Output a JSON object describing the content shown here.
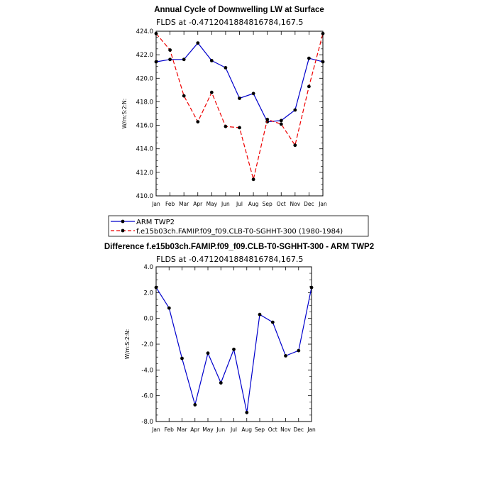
{
  "chart_data": [
    {
      "type": "line",
      "title": "Annual Cycle of Downwelling LW at Surface",
      "subtitle": "FLDS at -0.4712041884816784,167.5",
      "ylabel": "W/m:S:2:N:",
      "xlabel": "",
      "categories": [
        "Jan",
        "Feb",
        "Mar",
        "Apr",
        "May",
        "Jun",
        "Jul",
        "Aug",
        "Sep",
        "Oct",
        "Nov",
        "Dec",
        "Jan"
      ],
      "ylim": [
        410.0,
        424.0
      ],
      "yticks": [
        "410.0",
        "412.0",
        "414.0",
        "416.0",
        "418.0",
        "420.0",
        "422.0",
        "424.0"
      ],
      "series": [
        {
          "name": "ARM TWP2",
          "color": "#0000cc",
          "dash": "solid",
          "values": [
            421.4,
            421.6,
            421.6,
            423.0,
            421.5,
            420.9,
            418.3,
            418.7,
            416.3,
            416.4,
            417.3,
            421.7,
            421.4
          ]
        },
        {
          "name": "f.e15b03ch.FAMIP.f09_f09.CLB-T0-SGHHT-300 (1980-1984)",
          "color": "#ee0000",
          "dash": "dashed",
          "values": [
            423.8,
            422.4,
            418.5,
            416.3,
            418.8,
            415.9,
            415.8,
            411.4,
            416.5,
            416.1,
            414.3,
            419.3,
            423.8
          ]
        }
      ],
      "legend_position": "bottom-left"
    },
    {
      "type": "line",
      "title": "Difference f.e15b03ch.FAMIP.f09_f09.CLB-T0-SGHHT-300 - ARM TWP2",
      "subtitle": "FLDS at -0.4712041884816784,167.5",
      "ylabel": "W/m:S:2:N:",
      "xlabel": "",
      "categories": [
        "Jan",
        "Feb",
        "Mar",
        "Apr",
        "May",
        "Jun",
        "Jul",
        "Aug",
        "Sep",
        "Oct",
        "Nov",
        "Dec",
        "Jan"
      ],
      "ylim": [
        -8.0,
        4.0
      ],
      "yticks": [
        "-8.0",
        "-6.0",
        "-4.0",
        "-2.0",
        "0.0",
        "2.0",
        "4.0"
      ],
      "series": [
        {
          "name": "",
          "color": "#0000cc",
          "dash": "solid",
          "values": [
            2.4,
            0.8,
            -3.1,
            -6.7,
            -2.7,
            -5.0,
            -2.4,
            -7.3,
            0.3,
            -0.3,
            -2.9,
            -2.5,
            2.4
          ]
        }
      ]
    }
  ]
}
